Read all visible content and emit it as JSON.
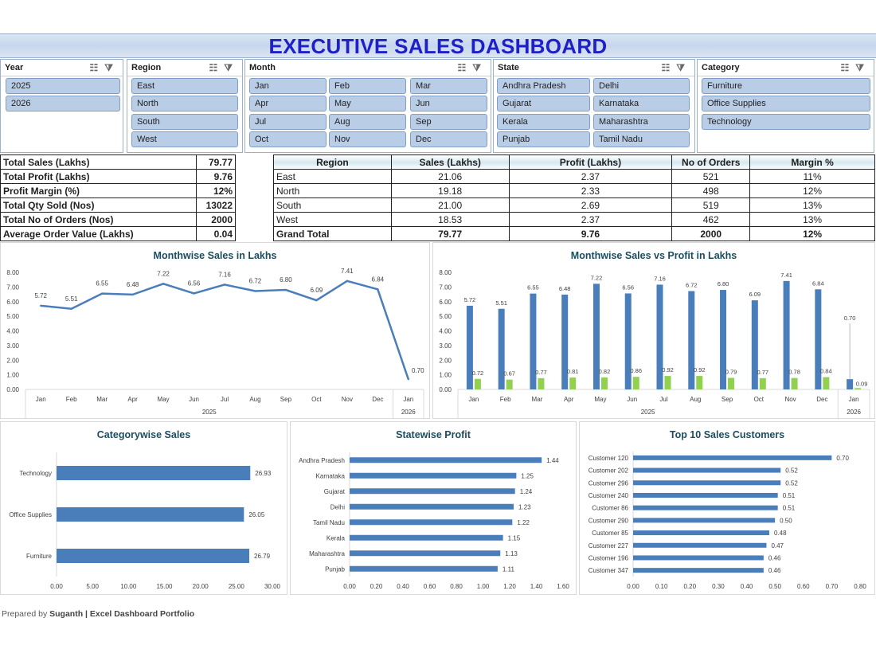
{
  "title": "EXECUTIVE SALES DASHBOARD",
  "slicers": {
    "year": {
      "label": "Year",
      "items": [
        "2025",
        "2026"
      ]
    },
    "region": {
      "label": "Region",
      "items": [
        "East",
        "North",
        "South",
        "West"
      ]
    },
    "month": {
      "label": "Month",
      "items": [
        "Jan",
        "Feb",
        "Mar",
        "Apr",
        "May",
        "Jun",
        "Jul",
        "Aug",
        "Sep",
        "Oct",
        "Nov",
        "Dec"
      ]
    },
    "state": {
      "label": "State",
      "items": [
        "Andhra Pradesh",
        "Delhi",
        "Gujarat",
        "Karnataka",
        "Kerala",
        "Maharashtra",
        "Punjab",
        "Tamil Nadu"
      ]
    },
    "category": {
      "label": "Category",
      "items": [
        "Furniture",
        "Office Supplies",
        "Technology"
      ]
    },
    "icons": [
      "multi-select-icon",
      "clear-filter-icon"
    ]
  },
  "kpis": [
    {
      "label": "Total Sales (Lakhs)",
      "value": "79.77"
    },
    {
      "label": "Total Profit (Lakhs)",
      "value": "9.76"
    },
    {
      "label": "Profit Margin (%)",
      "value": "12%"
    },
    {
      "label": "Total Qty Sold (Nos)",
      "value": "13022"
    },
    {
      "label": "Total No of Orders (Nos)",
      "value": "2000"
    },
    {
      "label": "Average Order Value (Lakhs)",
      "value": "0.04"
    }
  ],
  "region_table": {
    "headers": [
      "Region",
      "Sales (Lakhs)",
      "Profit (Lakhs)",
      "No of Orders",
      "Margin %"
    ],
    "rows": [
      [
        "East",
        "21.06",
        "2.37",
        "521",
        "11%"
      ],
      [
        "North",
        "19.18",
        "2.33",
        "498",
        "12%"
      ],
      [
        "South",
        "21.00",
        "2.69",
        "519",
        "13%"
      ],
      [
        "West",
        "18.53",
        "2.37",
        "462",
        "13%"
      ]
    ],
    "total": [
      "Grand Total",
      "79.77",
      "9.76",
      "2000",
      "12%"
    ]
  },
  "chart_data": [
    {
      "type": "line",
      "title": "Monthwise Sales in Lakhs",
      "categories": [
        "Jan",
        "Feb",
        "Mar",
        "Apr",
        "May",
        "Jun",
        "Jul",
        "Aug",
        "Sep",
        "Oct",
        "Nov",
        "Dec",
        "Jan"
      ],
      "groups": [
        {
          "label": "2025",
          "count": 12
        },
        {
          "label": "2026",
          "count": 1
        }
      ],
      "values": [
        5.72,
        5.51,
        6.55,
        6.48,
        7.22,
        6.56,
        7.16,
        6.72,
        6.8,
        6.09,
        7.41,
        6.84,
        0.7
      ],
      "yticks": [
        "0.00",
        "1.00",
        "2.00",
        "3.00",
        "4.00",
        "5.00",
        "6.00",
        "7.00",
        "8.00"
      ],
      "ylim": [
        0,
        8
      ],
      "color": "#4a7ebb"
    },
    {
      "type": "bar",
      "title": "Monthwise Sales vs Profit in Lakhs",
      "categories": [
        "Jan",
        "Feb",
        "Mar",
        "Apr",
        "May",
        "Jun",
        "Jul",
        "Aug",
        "Sep",
        "Oct",
        "Nov",
        "Dec",
        "Jan"
      ],
      "groups": [
        {
          "label": "2025",
          "count": 12
        },
        {
          "label": "2026",
          "count": 1
        }
      ],
      "series": [
        {
          "values": [
            5.72,
            5.51,
            6.55,
            6.48,
            7.22,
            6.56,
            7.16,
            6.72,
            6.8,
            6.09,
            7.41,
            6.84,
            0.7
          ],
          "color": "#4a7ebb"
        },
        {
          "values": [
            0.72,
            0.67,
            0.77,
            0.81,
            0.82,
            0.86,
            0.92,
            0.92,
            0.79,
            0.77,
            0.78,
            0.84,
            0.09
          ],
          "color": "#92d050"
        }
      ],
      "yticks": [
        "0.00",
        "1.00",
        "2.00",
        "3.00",
        "4.00",
        "5.00",
        "6.00",
        "7.00",
        "8.00"
      ],
      "ylim": [
        0,
        8
      ]
    },
    {
      "type": "bar",
      "orientation": "horizontal",
      "title": "Categorywise Sales",
      "categories": [
        "Technology",
        "Office Supplies",
        "Furniture"
      ],
      "values": [
        26.93,
        26.05,
        26.79
      ],
      "labels": [
        "26.93",
        "26.05",
        "26.79"
      ],
      "xticks": [
        "0.00",
        "5.00",
        "10.00",
        "15.00",
        "20.00",
        "25.00",
        "30.00"
      ],
      "xlim": [
        0,
        30
      ],
      "color": "#4a7ebb"
    },
    {
      "type": "bar",
      "orientation": "horizontal",
      "title": "Statewise Profit",
      "categories": [
        "Andhra Pradesh",
        "Karnataka",
        "Gujarat",
        "Delhi",
        "Tamil Nadu",
        "Kerala",
        "Maharashtra",
        "Punjab"
      ],
      "values": [
        1.44,
        1.25,
        1.24,
        1.23,
        1.22,
        1.15,
        1.13,
        1.11
      ],
      "labels": [
        "1.44",
        "1.25",
        "1.24",
        "1.23",
        "1.22",
        "1.15",
        "1.13",
        "1.11"
      ],
      "xticks": [
        "0.00",
        "0.20",
        "0.40",
        "0.60",
        "0.80",
        "1.00",
        "1.20",
        "1.40",
        "1.60"
      ],
      "xlim": [
        0,
        1.6
      ],
      "color": "#4a7ebb"
    },
    {
      "type": "bar",
      "orientation": "horizontal",
      "title": "Top 10 Sales Customers",
      "categories": [
        "Customer 120",
        "Customer 202",
        "Customer 296",
        "Customer 240",
        "Customer 86",
        "Customer 290",
        "Customer 85",
        "Customer 227",
        "Customer 196",
        "Customer 347"
      ],
      "values": [
        0.7,
        0.52,
        0.52,
        0.51,
        0.51,
        0.5,
        0.48,
        0.47,
        0.46,
        0.46
      ],
      "labels": [
        "0.70",
        "0.52",
        "0.52",
        "0.51",
        "0.51",
        "0.50",
        "0.48",
        "0.47",
        "0.46",
        "0.46"
      ],
      "xticks": [
        "0.00",
        "0.10",
        "0.20",
        "0.30",
        "0.40",
        "0.50",
        "0.60",
        "0.70",
        "0.80"
      ],
      "xlim": [
        0,
        0.8
      ],
      "color": "#4a7ebb"
    }
  ],
  "footer": {
    "prefix": "Prepared by",
    "author": "Suganth",
    "suffix": "| Excel Dashboard Portfolio"
  }
}
